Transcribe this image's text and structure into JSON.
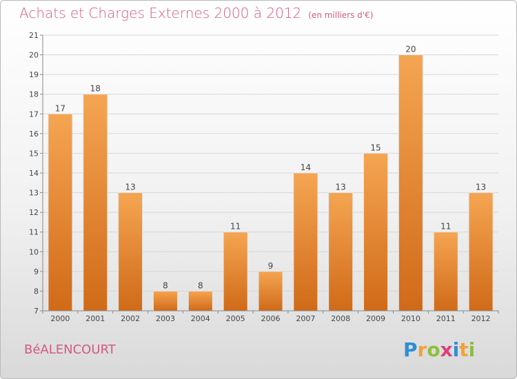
{
  "title": "Achats et Charges Externes 2000 à 2012",
  "subtitle": "(en milliers d'€)",
  "location": "BéALENCOURT",
  "logo": {
    "letters": [
      "P",
      "r",
      "o",
      "x",
      "i",
      "t",
      "i"
    ],
    "colors": [
      "#2d8fd5",
      "#f0a23a",
      "#8cbf3f",
      "#e0407a",
      "#2d8fd5",
      "#f0a23a",
      "#8cbf3f"
    ]
  },
  "colors": {
    "bar": "#f0963e",
    "bar_dark": "#d06a18",
    "title": "#d35a84"
  },
  "chart_data": {
    "type": "bar",
    "categories": [
      "2000",
      "2001",
      "2002",
      "2003",
      "2004",
      "2005",
      "2006",
      "2007",
      "2008",
      "2009",
      "2010",
      "2011",
      "2012"
    ],
    "values": [
      17,
      18,
      13,
      8,
      8,
      11,
      9,
      14,
      13,
      15,
      20,
      11,
      13
    ],
    "ylim": [
      7,
      21
    ],
    "yticks": [
      7,
      8,
      9,
      10,
      11,
      12,
      13,
      14,
      15,
      16,
      17,
      18,
      19,
      20,
      21
    ],
    "grid": true
  }
}
